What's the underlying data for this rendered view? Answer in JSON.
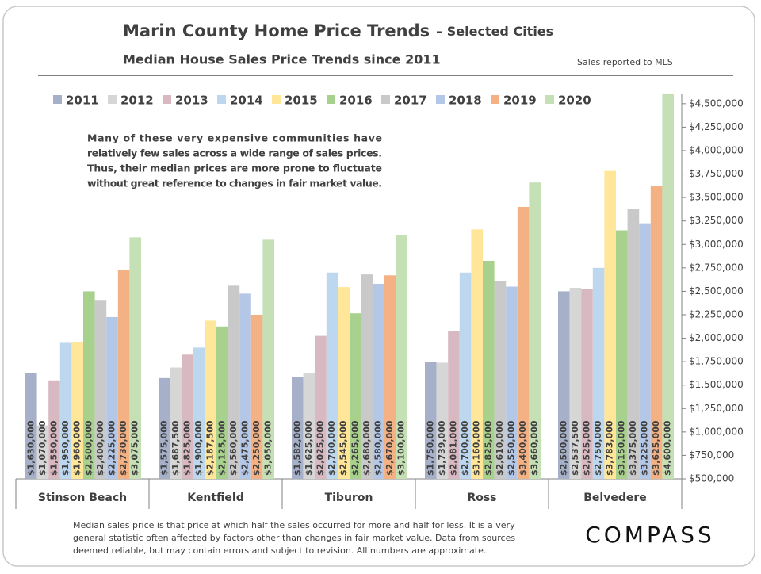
{
  "chart_data": {
    "type": "bar",
    "title": "Marin County Home Price Trends",
    "title_suffix": "– Selected Cities",
    "subtitle": "Median House Sales Price Trends since 2011",
    "note": "Sales reported to MLS",
    "annotation": [
      "Many of these very expensive communities have",
      "relatively few sales across a wide range of sales prices.",
      "Thus, their median prices are more prone to fluctuate",
      "without great reference to changes in fair market value."
    ],
    "footnote": [
      "Median sales price is that price at which half the sales occurred for more and half for less. It is a very",
      "general statistic often affected by factors other than changes in fair market value. Data from sources",
      "deemed reliable, but may contain errors and subject to revision. All numbers are approximate."
    ],
    "logo": "COMPASS",
    "categories": [
      "Stinson Beach",
      "Kentfield",
      "Tiburon",
      "Ross",
      "Belvedere"
    ],
    "series": [
      {
        "name": "2011",
        "color": "#a6b0c8",
        "values": [
          1630000,
          1575000,
          1582000,
          1750000,
          2500000
        ],
        "value_labels": [
          "$1,630,000",
          "$1,575,000",
          "$1,582,000",
          "$1,750,000",
          "$2,500,000"
        ]
      },
      {
        "name": "2012",
        "color": "#d6d6d6",
        "values": [
          1070000,
          1687500,
          1625000,
          1739000,
          2537500
        ],
        "value_labels": [
          "$1,070,000",
          "$1,687,500",
          "$1,625,000",
          "$1,739,000",
          "$2,537,500"
        ]
      },
      {
        "name": "2013",
        "color": "#d9b9c1",
        "values": [
          1550000,
          1825000,
          2025000,
          2081000,
          2525000
        ],
        "value_labels": [
          "$1,550,000",
          "$1,825,000",
          "$2,025,000",
          "$2,081,000",
          "$2,525,000"
        ]
      },
      {
        "name": "2014",
        "color": "#bdd7ee",
        "values": [
          1950000,
          1900000,
          2700000,
          2700000,
          2750000
        ],
        "value_labels": [
          "$1,950,000",
          "$1,900,000",
          "$2,700,000",
          "$2,700,000",
          "$2,750,000"
        ]
      },
      {
        "name": "2015",
        "color": "#ffe699",
        "values": [
          1960000,
          2187500,
          2545000,
          3160000,
          3783000
        ],
        "value_labels": [
          "$1,960,000",
          "$2,187,500",
          "$2,545,000",
          "$3,160,000",
          "$3,783,000"
        ]
      },
      {
        "name": "2016",
        "color": "#a9d18e",
        "values": [
          2500000,
          2125000,
          2265000,
          2825000,
          3150000
        ],
        "value_labels": [
          "$2,500,000",
          "$2,125,000",
          "$2,265,000",
          "$2,825,000",
          "$3,150,000"
        ]
      },
      {
        "name": "2017",
        "color": "#c9c9c9",
        "values": [
          2400000,
          2560000,
          2680000,
          2610000,
          3375000
        ],
        "value_labels": [
          "$2,400,000",
          "$2,560,000",
          "$2,680,000",
          "$2,610,000",
          "$3,375,000"
        ]
      },
      {
        "name": "2018",
        "color": "#b4c7e7",
        "values": [
          2225000,
          2475000,
          2580000,
          2550000,
          3225000
        ],
        "value_labels": [
          "$2,225,000",
          "$2,475,000",
          "$2,580,000",
          "$2,550,000",
          "$3,225,000"
        ]
      },
      {
        "name": "2019",
        "color": "#f4b183",
        "values": [
          2730000,
          2250000,
          2670000,
          3400000,
          3625000
        ],
        "value_labels": [
          "$2,730,000",
          "$2,250,000",
          "$2,670,000",
          "$3,400,000",
          "$3,625,000"
        ]
      },
      {
        "name": "2020",
        "color": "#c5e0b4",
        "values": [
          3075000,
          3050000,
          3100000,
          3660000,
          4600000
        ],
        "value_labels": [
          "$3,075,000",
          "$3,050,000",
          "$3,100,000",
          "$3,660,000",
          "$4,600,000"
        ]
      }
    ],
    "ylim": [
      500000,
      4600000
    ],
    "yticks": [
      {
        "value": 500000,
        "label": "$500,000"
      },
      {
        "value": 750000,
        "label": "$750,000"
      },
      {
        "value": 1000000,
        "label": "$1,000,000"
      },
      {
        "value": 1250000,
        "label": "$1,250,000"
      },
      {
        "value": 1500000,
        "label": "$1,500,000"
      },
      {
        "value": 1750000,
        "label": "$1,750,000"
      },
      {
        "value": 2000000,
        "label": "$2,000,000"
      },
      {
        "value": 2250000,
        "label": "$2,250,000"
      },
      {
        "value": 2500000,
        "label": "$2,500,000"
      },
      {
        "value": 2750000,
        "label": "$2,750,000"
      },
      {
        "value": 3000000,
        "label": "$3,000,000"
      },
      {
        "value": 3250000,
        "label": "$3,250,000"
      },
      {
        "value": 3500000,
        "label": "$3,500,000"
      },
      {
        "value": 3750000,
        "label": "$3,750,000"
      },
      {
        "value": 4000000,
        "label": "$4,000,000"
      },
      {
        "value": 4250000,
        "label": "$4,250,000"
      },
      {
        "value": 4500000,
        "label": "$4,500,000"
      }
    ],
    "y_axis_side": "right",
    "legend": "top"
  }
}
